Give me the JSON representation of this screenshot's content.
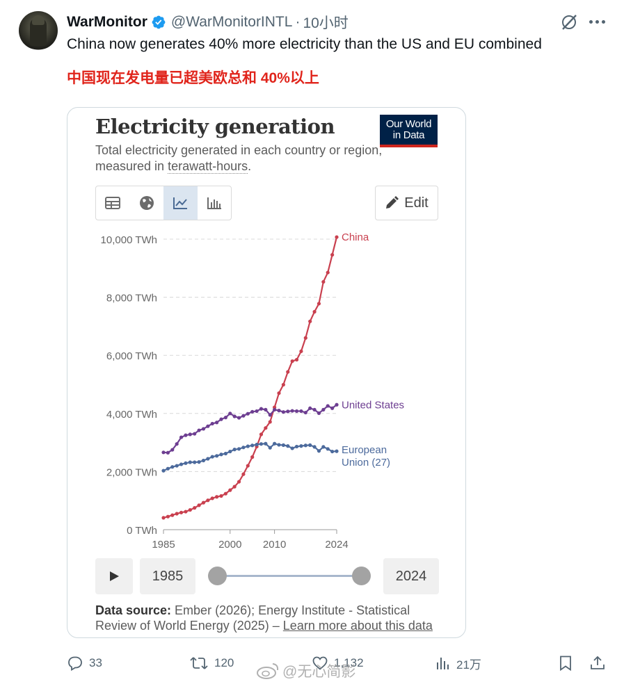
{
  "tweet": {
    "display_name": "WarMonitor",
    "handle": "@WarMonitorINTL",
    "separator": "·",
    "time": "10小时",
    "text": "China now generates 40% more electricity than the US and EU combined",
    "text_cn": "中国现在发电量已超美欧总和 40%以上"
  },
  "card": {
    "title": "Electricity generation",
    "subtitle_start": "Total electricity generated in each country or region, measured in ",
    "subtitle_link": "terawatt-hours",
    "subtitle_end": ".",
    "logo_line1": "Our World",
    "logo_line2": "in Data",
    "edit_label": "Edit",
    "start_year": "1985",
    "end_year": "2024",
    "source_label": "Data source:",
    "source_text": " Ember (2026); Energy Institute - Statistical Review of World Energy (2025) – ",
    "source_link": "Learn more about this data"
  },
  "chart_data": {
    "type": "line",
    "title": "Electricity generation",
    "ylabel": "TWh",
    "ylim": [
      0,
      10000
    ],
    "y_ticks": [
      {
        "value": 0,
        "label": "0 TWh"
      },
      {
        "value": 2000,
        "label": "2,000 TWh"
      },
      {
        "value": 4000,
        "label": "4,000 TWh"
      },
      {
        "value": 6000,
        "label": "6,000 TWh"
      },
      {
        "value": 8000,
        "label": "8,000 TWh"
      },
      {
        "value": 10000,
        "label": "10,000 TWh"
      }
    ],
    "x_ticks": [
      {
        "value": 1985,
        "label": "1985"
      },
      {
        "value": 2000,
        "label": "2000"
      },
      {
        "value": 2010,
        "label": "2010"
      },
      {
        "value": 2024,
        "label": "2024"
      }
    ],
    "xlim": [
      1985,
      2024
    ],
    "grid": true,
    "x": [
      1985,
      1986,
      1987,
      1988,
      1989,
      1990,
      1991,
      1992,
      1993,
      1994,
      1995,
      1996,
      1997,
      1998,
      1999,
      2000,
      2001,
      2002,
      2003,
      2004,
      2005,
      2006,
      2007,
      2008,
      2009,
      2010,
      2011,
      2012,
      2013,
      2014,
      2015,
      2016,
      2017,
      2018,
      2019,
      2020,
      2021,
      2022,
      2023,
      2024
    ],
    "series": [
      {
        "name": "China",
        "label": "China",
        "color": "#c9404f",
        "values": [
          410,
          450,
          500,
          550,
          590,
          620,
          680,
          750,
          840,
          930,
          1010,
          1080,
          1130,
          1160,
          1240,
          1360,
          1480,
          1650,
          1910,
          2200,
          2500,
          2860,
          3280,
          3500,
          3710,
          4210,
          4700,
          4990,
          5430,
          5800,
          5850,
          6140,
          6600,
          7170,
          7500,
          7780,
          8530,
          8850,
          9460,
          10070
        ]
      },
      {
        "name": "United States",
        "label": "United States",
        "color": "#6d3e91",
        "values": [
          2660,
          2650,
          2750,
          2950,
          3180,
          3250,
          3280,
          3300,
          3420,
          3470,
          3560,
          3650,
          3690,
          3800,
          3860,
          4000,
          3900,
          3850,
          3920,
          3990,
          4060,
          4080,
          4160,
          4130,
          3950,
          4130,
          4100,
          4050,
          4070,
          4090,
          4080,
          4080,
          4030,
          4180,
          4130,
          4010,
          4130,
          4260,
          4180,
          4300
        ]
      },
      {
        "name": "European Union (27)",
        "label_line1": "European",
        "label_line2": "Union (27)",
        "color": "#4c6a9c",
        "values": [
          2030,
          2100,
          2160,
          2200,
          2250,
          2290,
          2320,
          2320,
          2330,
          2380,
          2440,
          2510,
          2540,
          2590,
          2620,
          2690,
          2760,
          2780,
          2830,
          2870,
          2900,
          2930,
          2950,
          2960,
          2820,
          2960,
          2920,
          2910,
          2880,
          2800,
          2860,
          2880,
          2900,
          2910,
          2850,
          2710,
          2850,
          2780,
          2690,
          2700
        ]
      }
    ]
  },
  "actions": {
    "replies": "33",
    "reposts": "120",
    "likes": "1,132",
    "views": "21万"
  },
  "watermark": "@无心简影",
  "colors": {
    "verified": "#1d9bf0",
    "cn_text": "#e0241b",
    "muted": "#536471"
  }
}
